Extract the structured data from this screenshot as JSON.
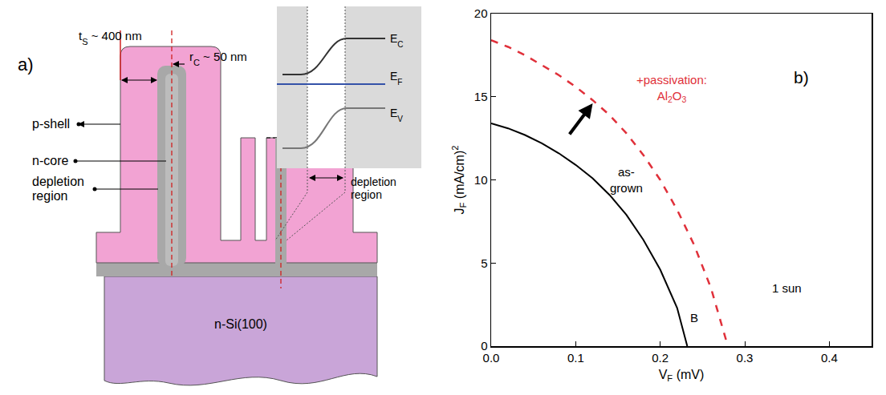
{
  "diagram": {
    "panel_label": "a)",
    "dimensions": [
      [
        "t",
        {
          "sub": "S"
        },
        " ~ 400 nm"
      ],
      [
        "r",
        {
          "sub": "C"
        },
        " ~ 50 nm"
      ]
    ],
    "regions": {
      "shell": "p-shell",
      "core": "n-core",
      "depletion": "depletion region",
      "substrate": "n-Si(100)"
    },
    "band_diagram": {
      "levels": [
        [
          "E",
          {
            "sub": "C"
          }
        ],
        [
          "E",
          {
            "sub": "F"
          }
        ],
        [
          "E",
          {
            "sub": "V"
          }
        ]
      ],
      "region_label": "depletion region"
    }
  },
  "chart_data": {
    "type": "line",
    "title": "b)",
    "x_label": [
      "V",
      {
        "sub": "F"
      },
      " (mV)"
    ],
    "y_label": [
      "J",
      {
        "sub": "F"
      },
      " (mA/cm)",
      {
        "sup": "2"
      }
    ],
    "xlim": [
      0,
      0.45
    ],
    "ylim": [
      0,
      20
    ],
    "xticks": [
      {
        "value": 0,
        "label": "0.0"
      },
      0.1,
      0.2,
      0.3,
      0.4
    ],
    "yticks": [
      0,
      5,
      10,
      15,
      20
    ],
    "grid": false,
    "series": [
      {
        "name": [
          "as-grown"
        ],
        "color": "#000000",
        "line_style": "solid",
        "x": [
          0,
          0.02,
          0.04,
          0.06,
          0.08,
          0.1,
          0.12,
          0.14,
          0.16,
          0.18,
          0.2,
          0.22,
          0.232
        ],
        "values": [
          13.4,
          13.1,
          12.7,
          12.2,
          11.6,
          10.9,
          10.1,
          9.1,
          7.9,
          6.4,
          4.6,
          2.3,
          0
        ]
      },
      {
        "name": [
          "+passivation:",
          {
            "br": true
          },
          "Al",
          {
            "sub": "2"
          },
          "O",
          {
            "sub": "3"
          }
        ],
        "color": "#e0303a",
        "line_style": "dash",
        "x": [
          0,
          0.02,
          0.04,
          0.06,
          0.08,
          0.1,
          0.12,
          0.14,
          0.16,
          0.18,
          0.2,
          0.22,
          0.24,
          0.26,
          0.28
        ],
        "values": [
          18.4,
          18.0,
          17.5,
          16.9,
          16.3,
          15.6,
          14.8,
          13.9,
          12.8,
          11.5,
          10.0,
          8.2,
          6.1,
          3.5,
          0
        ]
      }
    ],
    "annotations": [
      "B",
      "1 sun"
    ]
  }
}
